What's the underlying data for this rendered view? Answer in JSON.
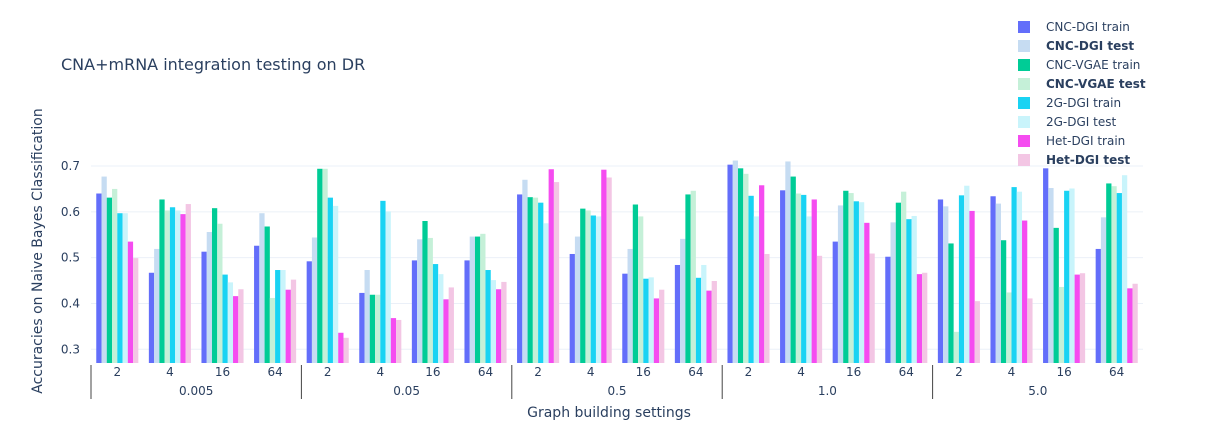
{
  "chart_data": {
    "type": "bar",
    "title": "CNA+mRNA integration testing on DR",
    "xlabel": "Graph building settings",
    "ylabel": "Accuracies on Naive Bayes Classification",
    "ylim": [
      0.27,
      0.735
    ],
    "yticks": [
      0.3,
      0.4,
      0.5,
      0.6,
      0.7
    ],
    "grid": true,
    "legend_position": "top-right",
    "groups": [
      "0.005",
      "0.05",
      "0.5",
      "1.0",
      "5.0"
    ],
    "subcategories": [
      "2",
      "4",
      "16",
      "64"
    ],
    "series": [
      {
        "name": "CNC-DGI train",
        "bold": false,
        "color": "#636efa",
        "values": [
          0.64,
          0.467,
          0.513,
          0.526,
          0.492,
          0.423,
          0.494,
          0.494,
          0.638,
          0.508,
          0.465,
          0.484,
          0.703,
          0.647,
          0.535,
          0.502,
          0.627,
          0.634,
          0.695,
          0.519
        ]
      },
      {
        "name": "CNC-DGI test",
        "bold": true,
        "color": "#c6dcf2",
        "values": [
          0.677,
          0.519,
          0.556,
          0.597,
          0.544,
          0.473,
          0.54,
          0.546,
          0.67,
          0.546,
          0.519,
          0.541,
          0.712,
          0.71,
          0.614,
          0.577,
          0.612,
          0.618,
          0.652,
          0.588
        ]
      },
      {
        "name": "CNC-VGAE train",
        "bold": false,
        "color": "#00cc96",
        "values": [
          0.631,
          0.627,
          0.608,
          0.568,
          0.694,
          0.419,
          0.58,
          0.546,
          0.632,
          0.607,
          0.616,
          0.638,
          0.695,
          0.677,
          0.646,
          0.62,
          0.531,
          0.538,
          0.565,
          0.662
        ]
      },
      {
        "name": "CNC-VGAE test",
        "bold": true,
        "color": "#c5f0d8",
        "values": [
          0.65,
          0.603,
          0.574,
          0.412,
          0.694,
          0.419,
          0.543,
          0.552,
          0.631,
          0.603,
          0.59,
          0.646,
          0.683,
          0.64,
          0.641,
          0.644,
          0.338,
          0.424,
          0.436,
          0.656
        ]
      },
      {
        "name": "2G-DGI train",
        "bold": false,
        "color": "#19d3f3",
        "values": [
          0.597,
          0.61,
          0.463,
          0.473,
          0.631,
          0.624,
          0.486,
          0.473,
          0.62,
          0.592,
          0.454,
          0.456,
          0.635,
          0.637,
          0.623,
          0.584,
          0.636,
          0.654,
          0.646,
          0.641
        ]
      },
      {
        "name": "2G-DGI test",
        "bold": false,
        "color": "#c9f4fb",
        "values": [
          0.597,
          0.603,
          0.446,
          0.473,
          0.613,
          0.601,
          0.464,
          0.451,
          0.575,
          0.59,
          0.457,
          0.484,
          0.59,
          0.59,
          0.621,
          0.591,
          0.657,
          0.644,
          0.651,
          0.68
        ]
      },
      {
        "name": "Het-DGI train",
        "bold": false,
        "color": "#f54cf0",
        "values": [
          0.535,
          0.595,
          0.416,
          0.43,
          0.336,
          0.368,
          0.409,
          0.431,
          0.693,
          0.692,
          0.411,
          0.428,
          0.658,
          0.627,
          0.576,
          0.464,
          0.602,
          0.581,
          0.463,
          0.433
        ]
      },
      {
        "name": "Het-DGI test",
        "bold": true,
        "color": "#f3c6e4",
        "values": [
          0.499,
          0.617,
          0.431,
          0.452,
          0.325,
          0.364,
          0.435,
          0.447,
          0.665,
          0.675,
          0.43,
          0.449,
          0.508,
          0.504,
          0.509,
          0.467,
          0.405,
          0.411,
          0.466,
          0.443
        ]
      }
    ]
  }
}
